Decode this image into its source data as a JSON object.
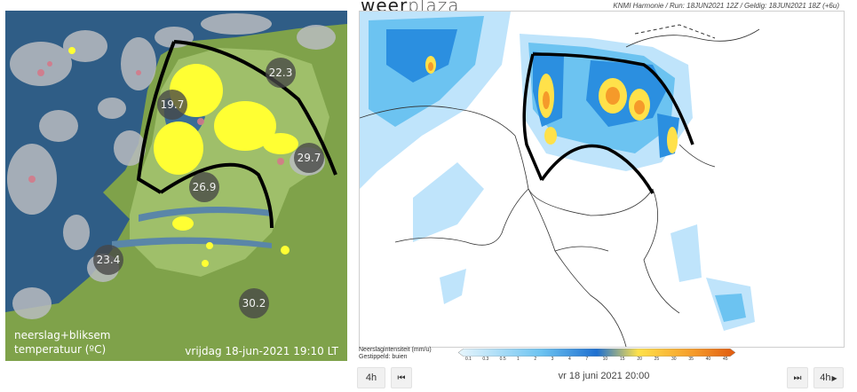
{
  "left_panel": {
    "temperatures": [
      "22.3",
      "19.7",
      "29.7",
      "26.9",
      "23.4",
      "30.2"
    ],
    "legend_line1": "neerslag+bliksem",
    "legend_line2": "temperatuur (ºC)",
    "timestamp": "vrijdag 18-jun-2021 19:10 LT"
  },
  "right_panel": {
    "logo_part1": "weer",
    "logo_part2": "plaza",
    "run_info": "KNMI Harmonie  /  Run: 18JUN2021 12Z  /  Geldig: 18JUN2021 18Z (+6u)",
    "legend_title_line1": "Neerslagintensiteit  (mm/u)",
    "legend_title_line2": "Gestippeld: buien",
    "legend_ticks": [
      "0.1",
      "0.3",
      "0.5",
      "1",
      "2",
      "3",
      "4",
      "7",
      "10",
      "15",
      "20",
      "25",
      "30",
      "35",
      "40",
      "45"
    ]
  },
  "controls": {
    "back_step_label": "4h",
    "forward_step_label": "4h",
    "time_label": "vr 18 juni 2021 20:00",
    "prev_icon": "skip-back-icon",
    "next_icon": "skip-forward-icon"
  },
  "colors": {
    "sea": "#2f5d86",
    "land": "#7fa24a",
    "lightning": "#ffff33",
    "annotation": "#000000"
  }
}
